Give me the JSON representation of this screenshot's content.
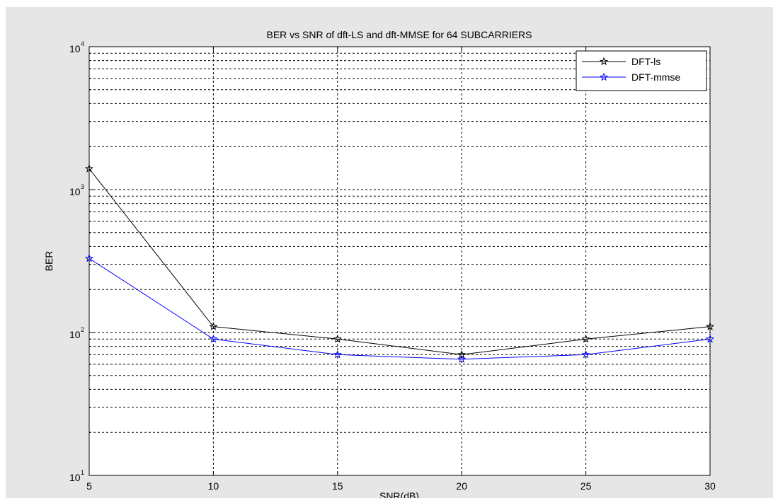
{
  "chart_data": {
    "type": "line",
    "title": "BER vs SNR of dft-LS and dft-MMSE for 64 SUBCARRIERS",
    "xlabel": "SNR(dB)",
    "ylabel": "BER",
    "yscale": "log",
    "xlim": [
      5,
      30
    ],
    "ylim": [
      10,
      10000
    ],
    "grid": true,
    "legend_position": "top-right",
    "x": [
      5,
      10,
      15,
      20,
      25,
      30
    ],
    "x_ticks": [
      "5",
      "10",
      "15",
      "20",
      "25",
      "30"
    ],
    "y_ticks": [
      {
        "base": "10",
        "exp": "1"
      },
      {
        "base": "10",
        "exp": "2"
      },
      {
        "base": "10",
        "exp": "3"
      },
      {
        "base": "10",
        "exp": "4"
      }
    ],
    "series": [
      {
        "name": "DFT-ls",
        "color": "#000000",
        "marker": "star",
        "values": [
          1400,
          110,
          90,
          70,
          90,
          110
        ]
      },
      {
        "name": "DFT-mmse",
        "color": "#0000ff",
        "marker": "star",
        "values": [
          330,
          90,
          70,
          65,
          70,
          90
        ]
      }
    ]
  }
}
